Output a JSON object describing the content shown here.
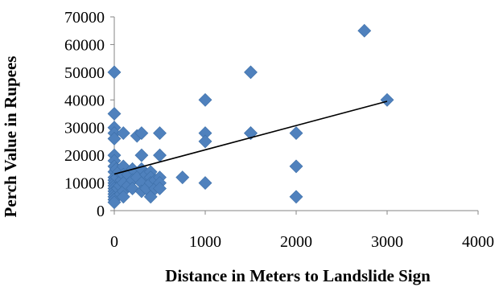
{
  "chart_data": {
    "type": "scatter",
    "xlabel": "Distance in Meters  to Landslide Sign",
    "ylabel": "Perch Value in Rupees",
    "xlim": [
      0,
      4000
    ],
    "ylim": [
      0,
      70000
    ],
    "xticks": [
      "0",
      "1000",
      "2000",
      "3000",
      "4000"
    ],
    "yticks": [
      "0",
      "10000",
      "20000",
      "30000",
      "40000",
      "50000",
      "60000",
      "70000"
    ],
    "grid": false,
    "legend": "none",
    "marker": "diamond",
    "marker_color": "#4F81BD",
    "trendline": {
      "type": "linear",
      "x": [
        0,
        3000
      ],
      "y": [
        13200,
        39500
      ],
      "color": "#000000"
    },
    "points": [
      [
        0,
        50000
      ],
      [
        0,
        35000
      ],
      [
        0,
        30000
      ],
      [
        0,
        28000
      ],
      [
        0,
        26000
      ],
      [
        0,
        20000
      ],
      [
        0,
        18000
      ],
      [
        0,
        16000
      ],
      [
        0,
        14000
      ],
      [
        0,
        12000
      ],
      [
        0,
        11000
      ],
      [
        0,
        10000
      ],
      [
        0,
        9000
      ],
      [
        0,
        8000
      ],
      [
        0,
        7000
      ],
      [
        0,
        6000
      ],
      [
        0,
        5000
      ],
      [
        0,
        4000
      ],
      [
        0,
        3000
      ],
      [
        20,
        15000
      ],
      [
        30,
        12000
      ],
      [
        40,
        8000
      ],
      [
        50,
        14000
      ],
      [
        60,
        9000
      ],
      [
        70,
        6000
      ],
      [
        80,
        11000
      ],
      [
        100,
        28000
      ],
      [
        100,
        16000
      ],
      [
        100,
        13000
      ],
      [
        100,
        10000
      ],
      [
        100,
        7000
      ],
      [
        100,
        5000
      ],
      [
        150,
        13000
      ],
      [
        150,
        9000
      ],
      [
        200,
        15000
      ],
      [
        200,
        11000
      ],
      [
        200,
        8000
      ],
      [
        250,
        27000
      ],
      [
        250,
        12000
      ],
      [
        300,
        28000
      ],
      [
        300,
        20000
      ],
      [
        300,
        15000
      ],
      [
        300,
        10000
      ],
      [
        300,
        7000
      ],
      [
        350,
        13000
      ],
      [
        350,
        8000
      ],
      [
        400,
        14000
      ],
      [
        400,
        12000
      ],
      [
        400,
        10000
      ],
      [
        400,
        5000
      ],
      [
        450,
        11000
      ],
      [
        450,
        8000
      ],
      [
        500,
        28000
      ],
      [
        500,
        20000
      ],
      [
        500,
        12000
      ],
      [
        500,
        10000
      ],
      [
        500,
        8000
      ],
      [
        750,
        12000
      ],
      [
        1000,
        40000
      ],
      [
        1000,
        28000
      ],
      [
        1000,
        25000
      ],
      [
        1000,
        10000
      ],
      [
        1500,
        50000
      ],
      [
        1500,
        28000
      ],
      [
        1500,
        28000
      ],
      [
        2000,
        28000
      ],
      [
        2000,
        16000
      ],
      [
        2000,
        5000
      ],
      [
        2750,
        65000
      ],
      [
        3000,
        40000
      ]
    ]
  }
}
